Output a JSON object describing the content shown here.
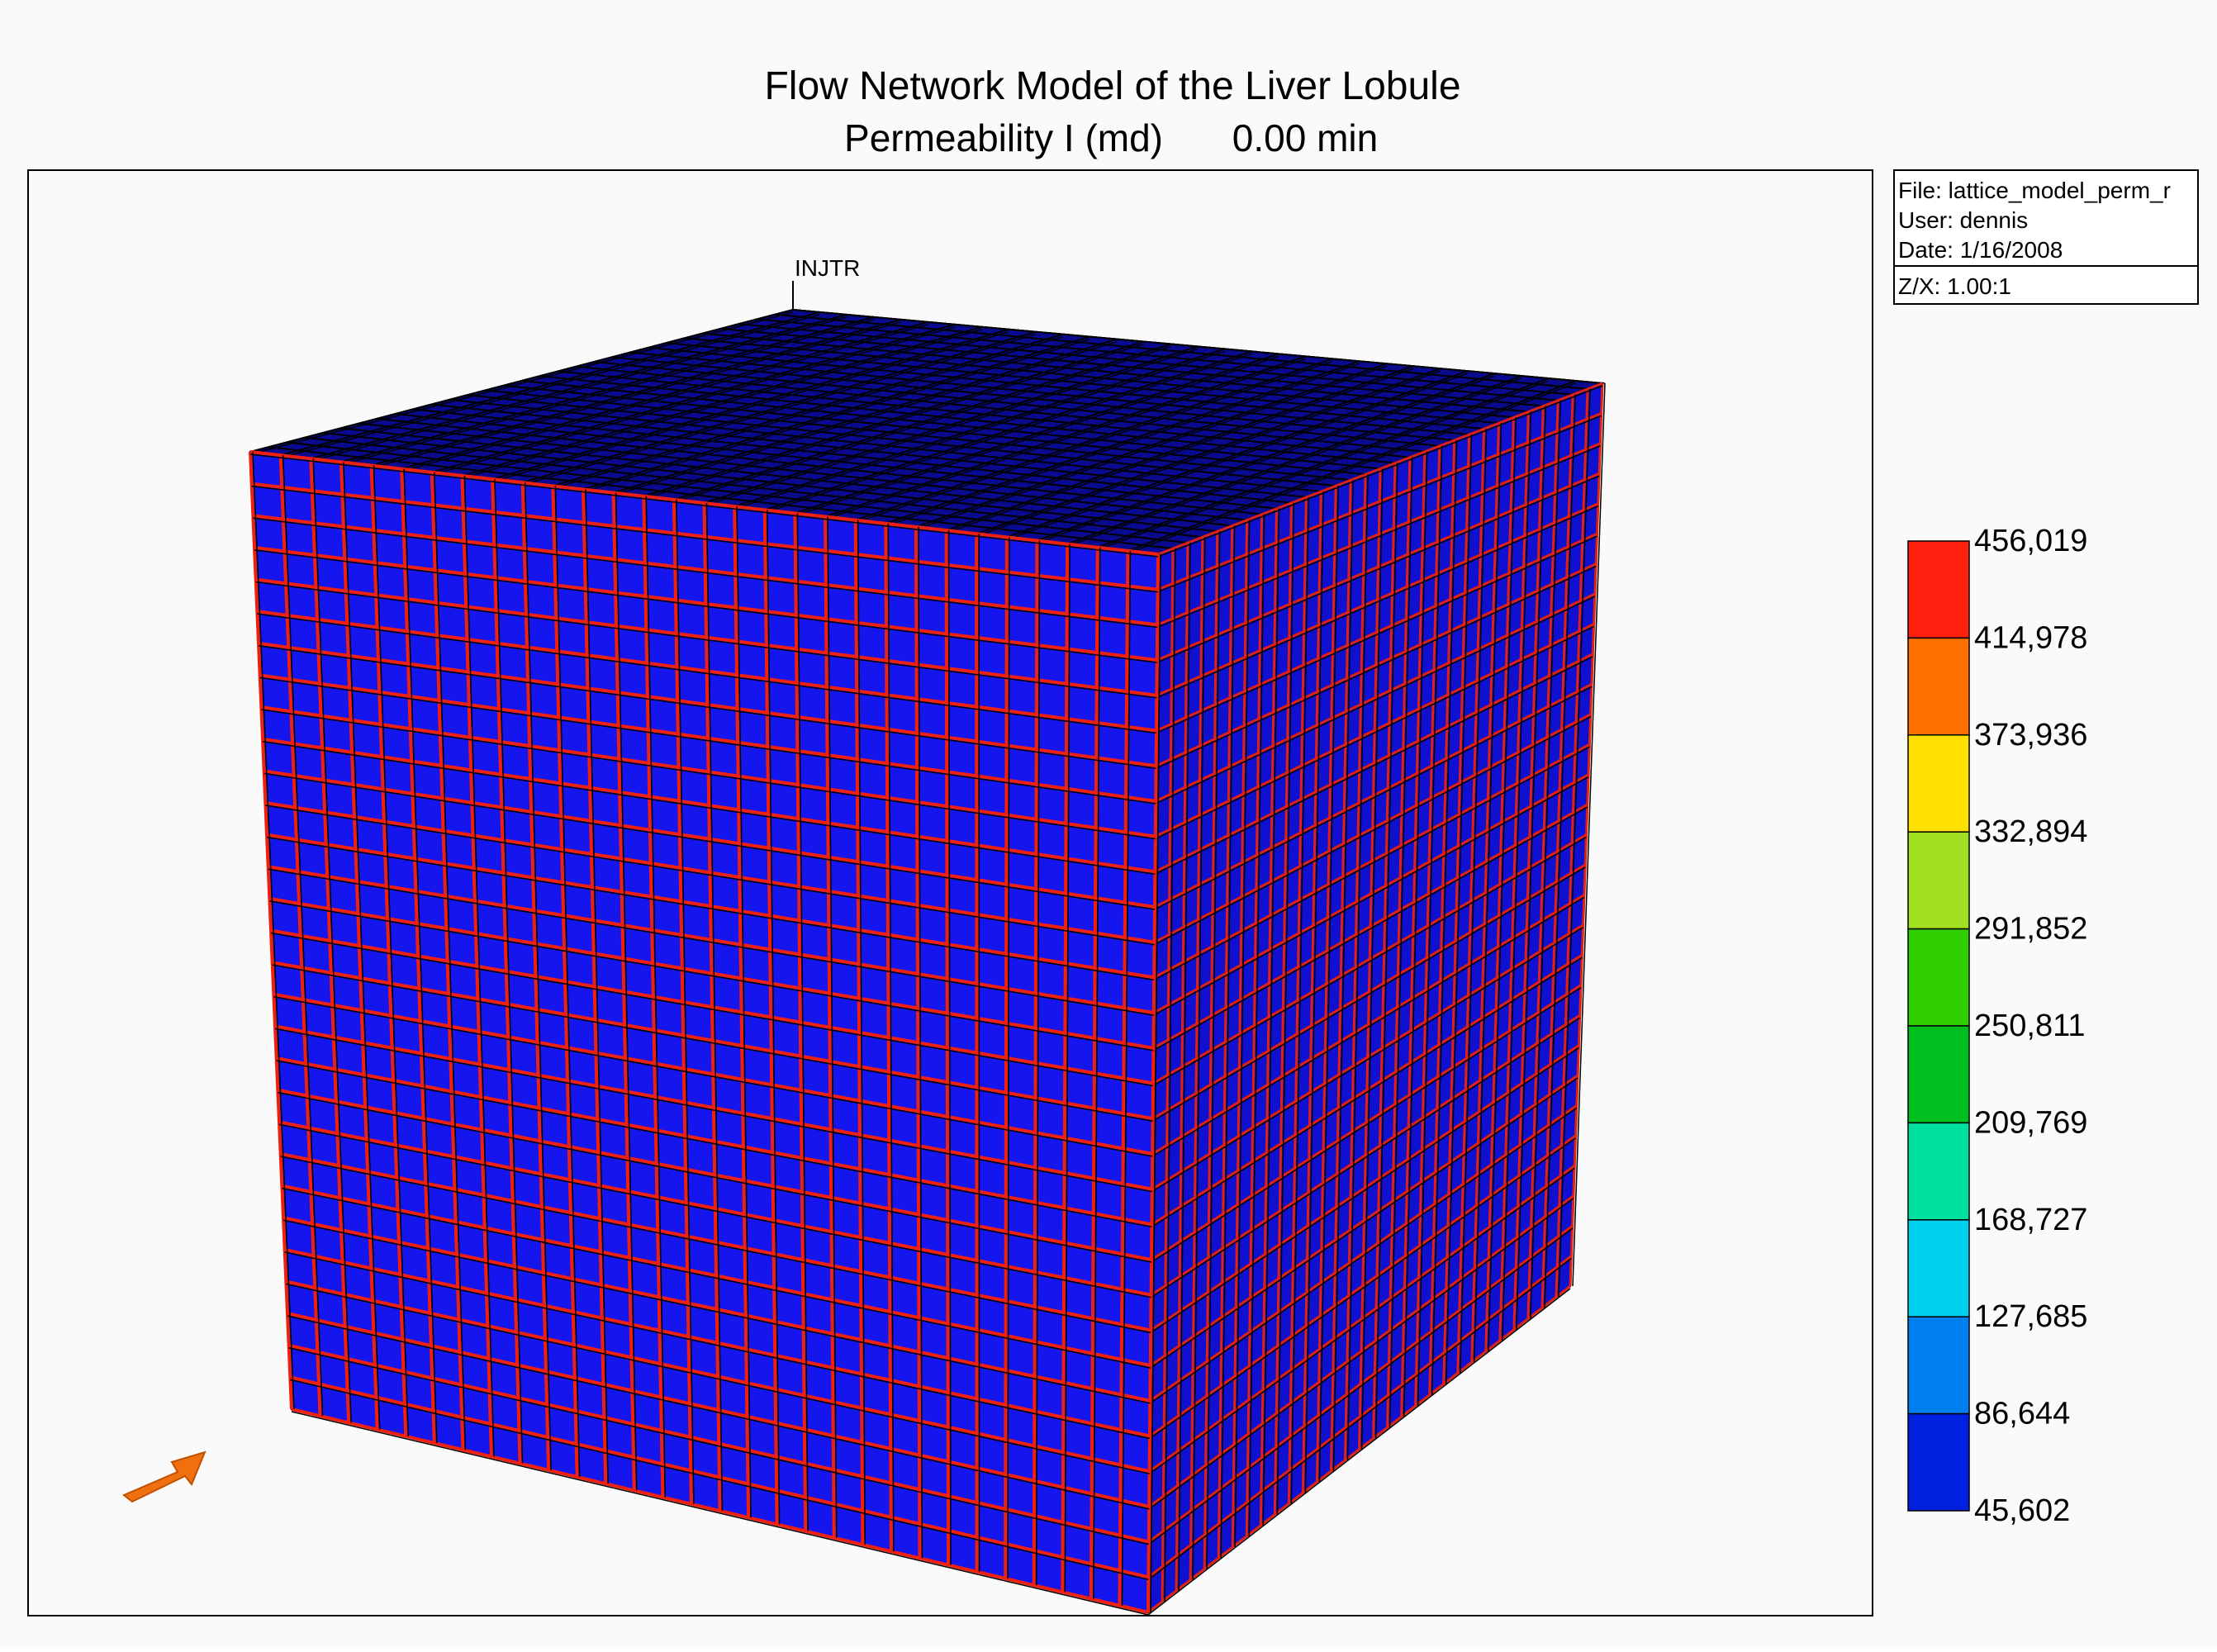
{
  "header": {
    "title": "Flow Network Model of the Liver Lobule",
    "property": "Permeability I (md)",
    "time": "0.00 min"
  },
  "info": {
    "file": "File: lattice_model_perm_r",
    "user": "User:  dennis",
    "date": "Date: 1/16/2008",
    "ratio": "Z/X: 1.00:1"
  },
  "well": {
    "label": "INJTR"
  },
  "legend": {
    "labels": [
      "456,019",
      "414,978",
      "373,936",
      "332,894",
      "291,852",
      "250,811",
      "209,769",
      "168,727",
      "127,685",
      "86,644",
      "45,602"
    ],
    "colors": [
      "#ff2010",
      "#ff7000",
      "#ffe000",
      "#a0e020",
      "#30d000",
      "#00c020",
      "#00e0a0",
      "#00d0f0",
      "#0080f0",
      "#0020e0"
    ]
  }
}
